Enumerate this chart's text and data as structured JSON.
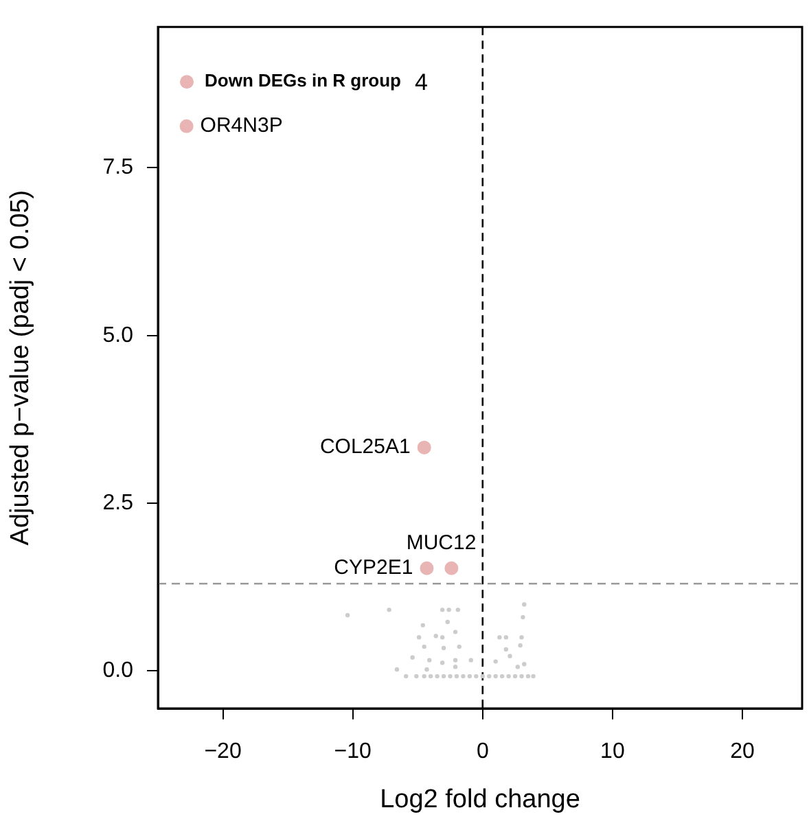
{
  "chart_data": {
    "type": "scatter",
    "xlabel": "Log2 fold change",
    "ylabel": "Adjusted p−value (padj < 0.05)",
    "xlim": [
      -25,
      24.6
    ],
    "ylim": [
      -0.56,
      9.6
    ],
    "xticks": [
      {
        "value": -20,
        "label": "−20"
      },
      {
        "value": -10,
        "label": "−10"
      },
      0,
      10,
      20
    ],
    "yticks": [
      {
        "value": 0,
        "label": "0.0"
      },
      2.5,
      {
        "value": 5,
        "label": "5.0"
      },
      7.5
    ],
    "grid": false,
    "legend": "top left",
    "marker": "circle",
    "series": [
      {
        "color": "#cccccc",
        "x": [
          -10.4,
          -7.2,
          -3.1,
          -2.6,
          -1.9,
          3.2,
          3.1,
          -4.6,
          -2.7,
          -2.1,
          -4.9,
          -3.6,
          -3.1,
          -4.5,
          -1.8,
          -3.0,
          1.3,
          1.8,
          3.0,
          2.9,
          1.8,
          2.1,
          -5.4,
          -4.1,
          -3.1,
          -2.1,
          -0.9,
          1.0,
          -6.6,
          3.2,
          -4.3,
          -2.1,
          2.7,
          -5.9,
          -5.1,
          -4.5,
          -4.0,
          -3.5,
          -3.0,
          -2.5,
          -2.0,
          -1.5,
          -1.0,
          -0.5,
          0.0,
          0.5,
          1.0,
          1.5,
          2.0,
          2.5,
          3.0,
          3.5,
          3.9
        ],
        "values": [
          0.83,
          0.91,
          0.91,
          0.91,
          0.91,
          0.99,
          0.8,
          0.68,
          0.73,
          0.58,
          0.5,
          0.52,
          0.5,
          0.36,
          0.36,
          0.34,
          0.5,
          0.5,
          0.5,
          0.38,
          0.32,
          0.22,
          0.2,
          0.16,
          0.12,
          0.16,
          0.16,
          0.14,
          0.02,
          0.1,
          0.02,
          0.06,
          0.06,
          -0.08,
          -0.08,
          -0.08,
          -0.08,
          -0.08,
          -0.08,
          -0.08,
          -0.08,
          -0.08,
          -0.08,
          -0.08,
          -0.08,
          -0.08,
          -0.08,
          -0.08,
          -0.08,
          -0.08,
          -0.08,
          -0.08,
          -0.08
        ]
      },
      {
        "name": "Down DEGs in R group",
        "color": "#e8b4b4",
        "x": [
          -22.8,
          -4.5,
          -4.3,
          -2.4
        ],
        "values": [
          8.12,
          3.33,
          1.53,
          1.53
        ]
      }
    ],
    "ref_lines": [
      {
        "axis": "x",
        "value": 0,
        "color": "#000000",
        "line_style": "dashed"
      },
      {
        "axis": "y",
        "value": 1.3,
        "color": "#999999",
        "line_style": "dashed"
      }
    ],
    "annotations": [
      "4",
      {
        "text": "OR4N3P",
        "x": -22.8,
        "y": 8.12
      },
      {
        "text": "COL25A1",
        "x": -4.5,
        "y": 3.33
      },
      {
        "text": "CYP2E1",
        "x": -4.3,
        "y": 1.53
      },
      {
        "text": "MUC12",
        "x": -2.4,
        "y": 1.53
      }
    ]
  }
}
